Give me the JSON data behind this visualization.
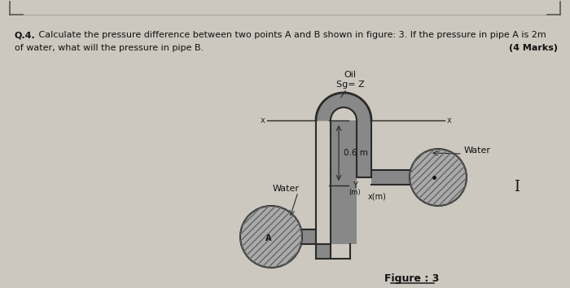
{
  "bg_color": "#ccc8bf",
  "text_color": "#111111",
  "q_bold": "Q.4.",
  "q_rest": " Calculate the pressure difference between two points A and B shown in figure: 3. If the pressure in pipe A is 2m",
  "q_line2": "of water, what will the pressure in pipe B.",
  "marks_text": "(4 Marks)",
  "oil_label": "Oil",
  "sg_label": "Sg= Z",
  "dim_label": "0.6 m",
  "water_label_left": "Water",
  "water_label_right": "Water",
  "y_label": "Y",
  "ym_label": "(m)",
  "x_label": "x(m)",
  "figure_label": "Figure : 3",
  "dark_pipe": "#2a2a2a",
  "pipe_fill": "#888888",
  "circle_fill": "#aaaaaa",
  "border_color": "#555555",
  "corner_mark_color": "#555555"
}
